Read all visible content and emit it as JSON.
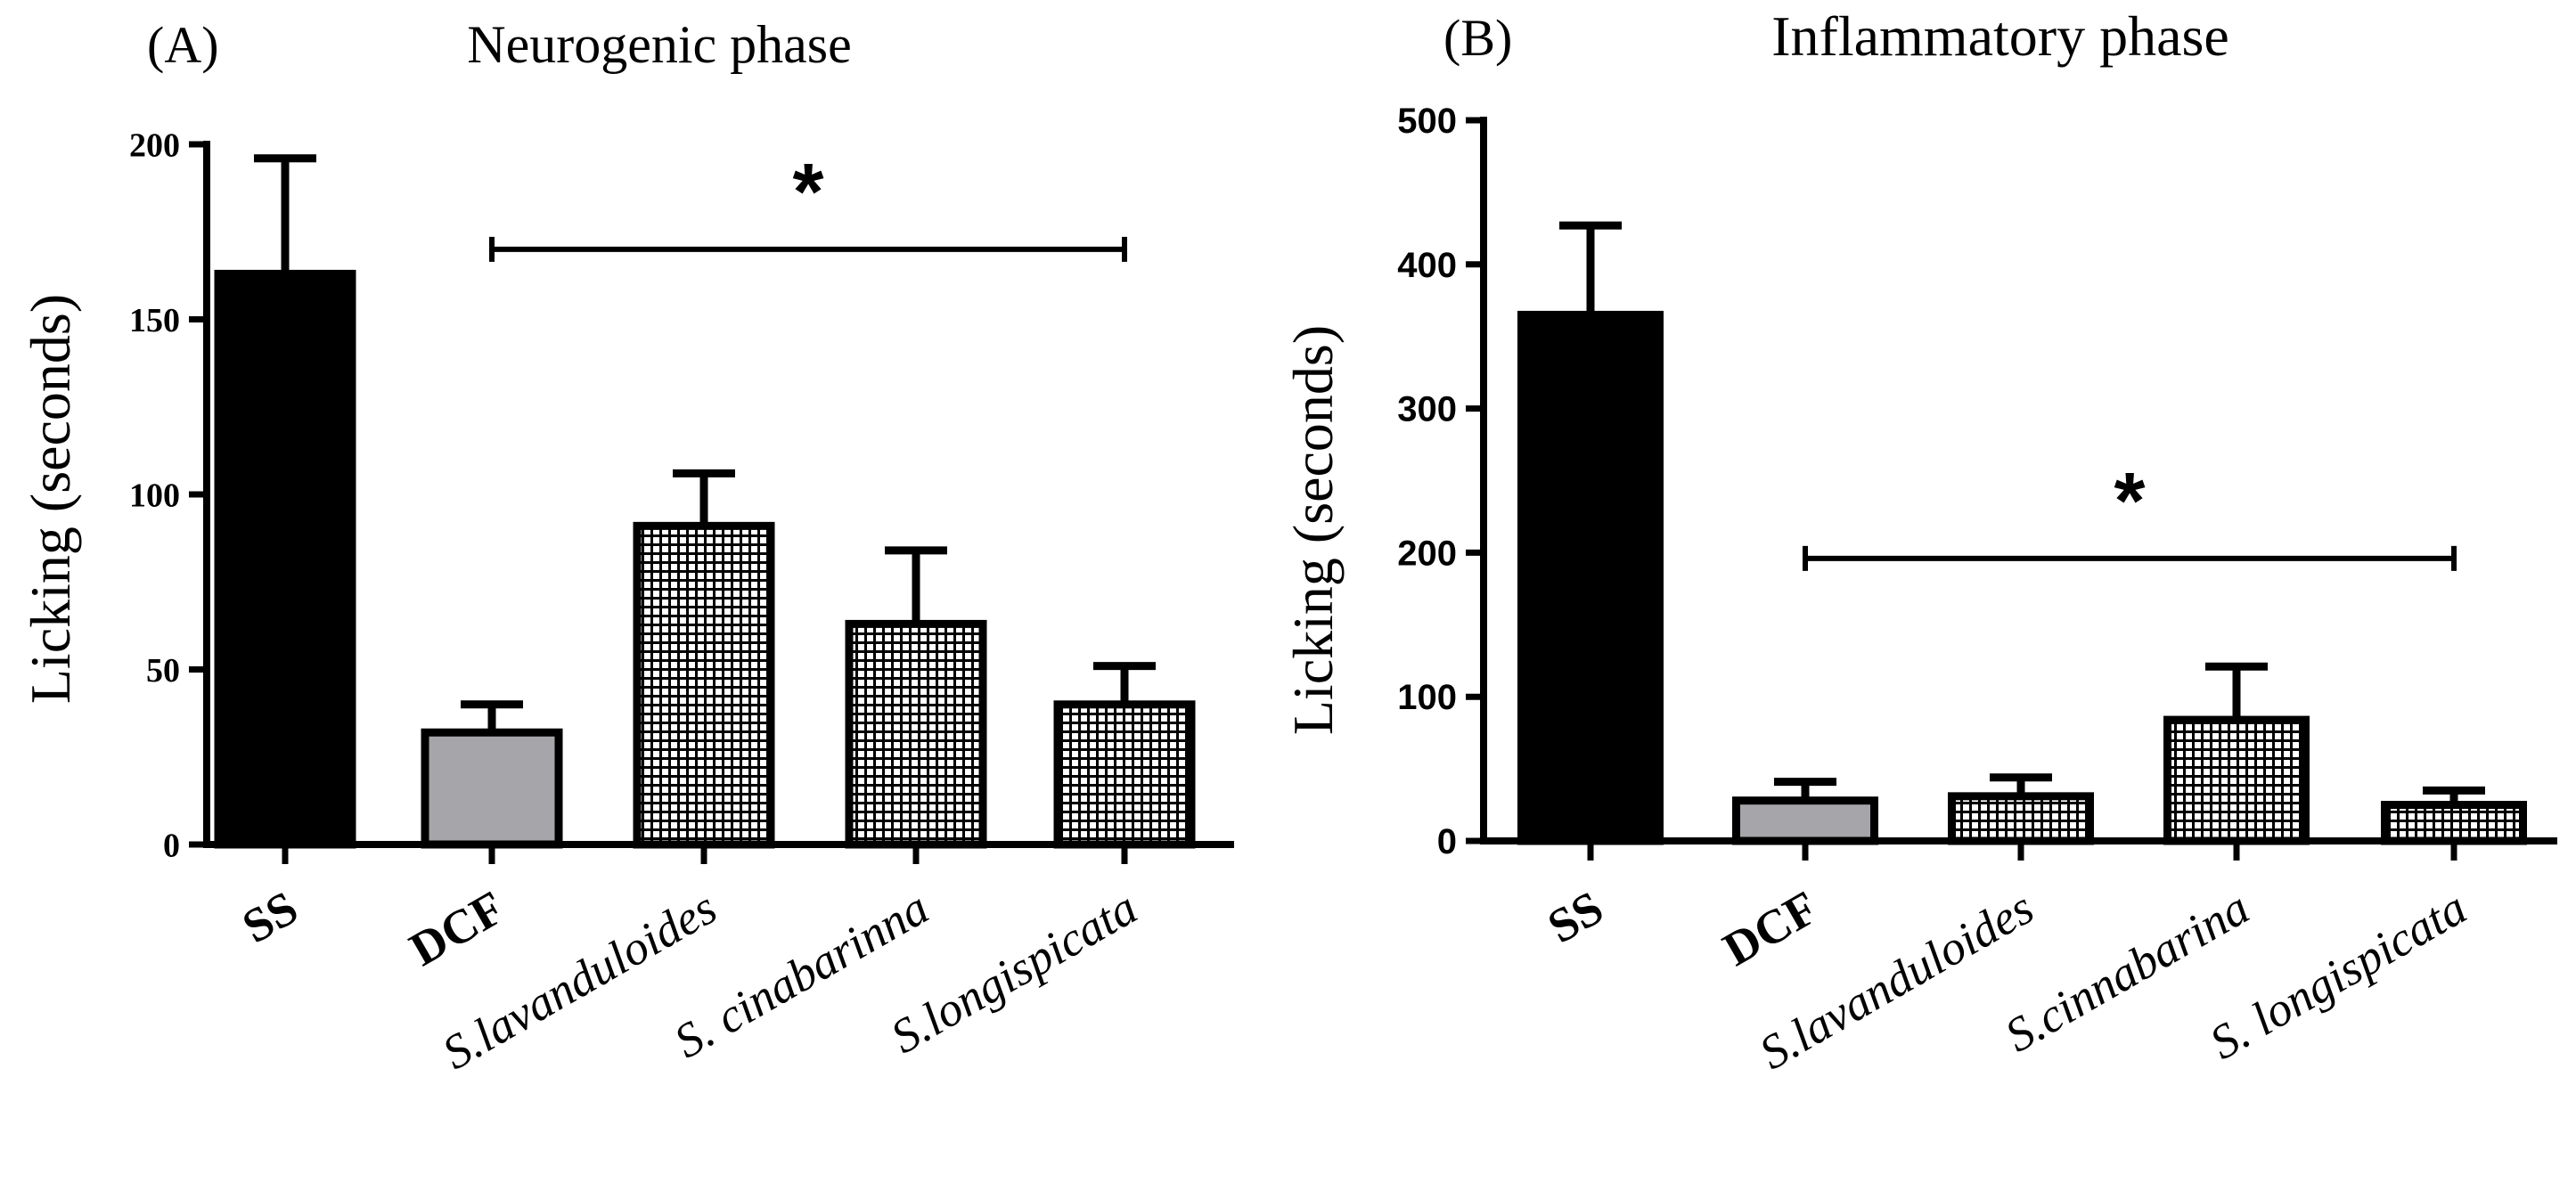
{
  "chart_data": [
    {
      "type": "bar",
      "panel_label": "(A)",
      "title": "Neurogenic phase",
      "ylabel": "Licking (seconds)",
      "ylim": [
        0,
        200
      ],
      "yticks": [
        0,
        50,
        100,
        150,
        200
      ],
      "categories": [
        "SS",
        "DCF",
        "S.lavanduloides",
        "S. cinabarinna",
        "S.longispicata"
      ],
      "values": [
        163,
        32,
        91,
        63,
        40
      ],
      "errors": [
        33,
        8,
        15,
        21,
        11
      ],
      "fills": [
        "solid-black",
        "solid-gray",
        "grid",
        "grid",
        "grid"
      ],
      "italic": [
        false,
        false,
        true,
        true,
        true
      ],
      "significance": {
        "label": "*",
        "from_index": 1,
        "to_index": 4,
        "y": 170
      }
    },
    {
      "type": "bar",
      "panel_label": "(B)",
      "title": "Inflammatory phase",
      "ylabel": "Licking (seconds)",
      "ylim": [
        0,
        500
      ],
      "yticks": [
        0,
        100,
        200,
        300,
        400,
        500
      ],
      "categories": [
        "SS",
        "DCF",
        "S.lavanduloides",
        "S.cinnabarina",
        "S. longispicata"
      ],
      "values": [
        365,
        28,
        31,
        84,
        25
      ],
      "errors": [
        62,
        13,
        13,
        37,
        10
      ],
      "fills": [
        "solid-black",
        "solid-gray",
        "grid",
        "grid",
        "grid"
      ],
      "italic": [
        false,
        false,
        true,
        true,
        true
      ],
      "significance": {
        "label": "*",
        "from_index": 1,
        "to_index": 4,
        "y": 196
      }
    }
  ],
  "colors": {
    "black_bar": "#000000",
    "gray_bar": "#a6a6aa",
    "outline": "#000000",
    "background": "#ffffff"
  }
}
